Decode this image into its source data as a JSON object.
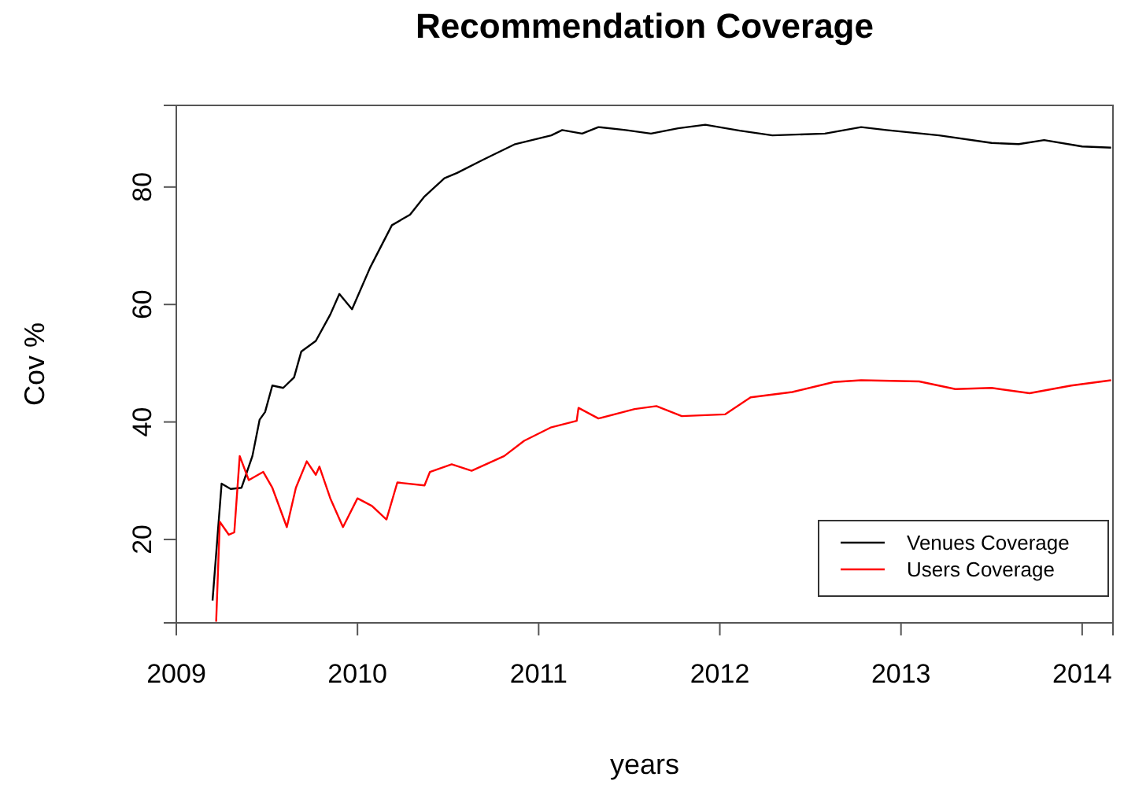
{
  "chart_data": {
    "type": "line",
    "title": "Recommendation Coverage",
    "xlabel": "years",
    "ylabel": "Cov %",
    "xlim": [
      2009,
      2014.17
    ],
    "xticks": [
      2009,
      2010,
      2011,
      2012,
      2013,
      2014
    ],
    "ylim": [
      5.8,
      93.9
    ],
    "yticks": [
      20,
      40,
      60,
      80
    ],
    "grid": false,
    "legend": "bottom right",
    "line_style": "solid",
    "marker": "none",
    "series": [
      {
        "name": "Venues Coverage",
        "color": "#000000",
        "x": [
          2009.2,
          2009.25,
          2009.3,
          2009.36,
          2009.42,
          2009.46,
          2009.49,
          2009.53,
          2009.59,
          2009.65,
          2009.69,
          2009.77,
          2009.85,
          2009.9,
          2009.97,
          2010.07,
          2010.19,
          2010.29,
          2010.37,
          2010.48,
          2010.55,
          2010.69,
          2010.87,
          2011.07,
          2011.13,
          2011.24,
          2011.33,
          2011.48,
          2011.62,
          2011.77,
          2011.92,
          2012.11,
          2012.29,
          2012.58,
          2012.78,
          2012.92,
          2013.21,
          2013.5,
          2013.65,
          2013.79,
          2014,
          2014.16
        ],
        "values": [
          9.6,
          29.5,
          28.6,
          28.8,
          34.2,
          40.4,
          41.7,
          46.2,
          45.8,
          47.6,
          52,
          53.8,
          58.3,
          61.8,
          59.2,
          66.3,
          73.5,
          75.3,
          78.4,
          81.5,
          82.4,
          84.6,
          87.3,
          88.8,
          89.7,
          89.1,
          90.2,
          89.7,
          89.1,
          90,
          90.6,
          89.6,
          88.8,
          89.1,
          90.2,
          89.7,
          88.8,
          87.5,
          87.3,
          88,
          86.9,
          86.7
        ]
      },
      {
        "name": "Users Coverage",
        "color": "#ff0000",
        "x": [
          2009.22,
          2009.24,
          2009.29,
          2009.32,
          2009.35,
          2009.4,
          2009.48,
          2009.53,
          2009.61,
          2009.66,
          2009.72,
          2009.77,
          2009.79,
          2009.85,
          2009.92,
          2010,
          2010.08,
          2010.16,
          2010.22,
          2010.37,
          2010.4,
          2010.52,
          2010.63,
          2010.81,
          2010.92,
          2011.07,
          2011.21,
          2011.22,
          2011.33,
          2011.53,
          2011.65,
          2011.79,
          2012.03,
          2012.17,
          2012.4,
          2012.63,
          2012.78,
          2013.1,
          2013.3,
          2013.5,
          2013.71,
          2013.94,
          2014.16
        ],
        "values": [
          6,
          23,
          20.8,
          21.2,
          34.2,
          30.1,
          31.5,
          28.8,
          22.1,
          28.8,
          33.3,
          31,
          32.4,
          27,
          22.1,
          27,
          25.7,
          23.4,
          29.7,
          29.2,
          31.5,
          32.8,
          31.7,
          34.2,
          36.8,
          39.1,
          40.2,
          42.4,
          40.6,
          42.2,
          42.7,
          41,
          41.3,
          44.2,
          45.1,
          46.8,
          47.1,
          46.9,
          45.6,
          45.8,
          44.9,
          46.2,
          47.1
        ]
      }
    ]
  }
}
